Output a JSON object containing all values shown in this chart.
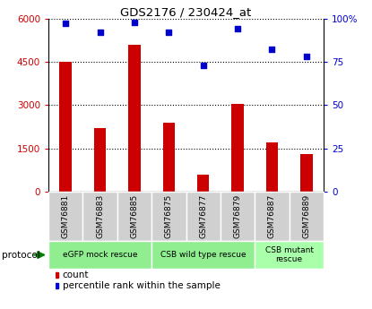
{
  "title": "GDS2176 / 230424_at",
  "samples": [
    "GSM76881",
    "GSM76883",
    "GSM76885",
    "GSM76875",
    "GSM76877",
    "GSM76879",
    "GSM76887",
    "GSM76889"
  ],
  "counts": [
    4500,
    2200,
    5100,
    2400,
    600,
    3050,
    1700,
    1300
  ],
  "percentile_ranks": [
    97,
    92,
    98,
    92,
    73,
    94,
    82,
    78
  ],
  "bar_color": "#cc0000",
  "dot_color": "#0000cc",
  "ylim_left": [
    0,
    6000
  ],
  "ylim_right": [
    0,
    100
  ],
  "yticks_left": [
    0,
    1500,
    3000,
    4500,
    6000
  ],
  "ytick_labels_left": [
    "0",
    "1500",
    "3000",
    "4500",
    "6000"
  ],
  "yticks_right": [
    0,
    25,
    50,
    75,
    100
  ],
  "ytick_labels_right": [
    "0",
    "25",
    "50",
    "75",
    "100%"
  ],
  "protocols": [
    {
      "label": "eGFP mock rescue",
      "start": 0,
      "end": 3,
      "color": "#90ee90"
    },
    {
      "label": "CSB wild type rescue",
      "start": 3,
      "end": 6,
      "color": "#90ee90"
    },
    {
      "label": "CSB mutant\nrescue",
      "start": 6,
      "end": 8,
      "color": "#aaffaa"
    }
  ],
  "protocol_label": "protocol",
  "legend_count_label": "count",
  "legend_pct_label": "percentile rank within the sample",
  "grid_color": "#000000",
  "label_area_color": "#d0d0d0"
}
